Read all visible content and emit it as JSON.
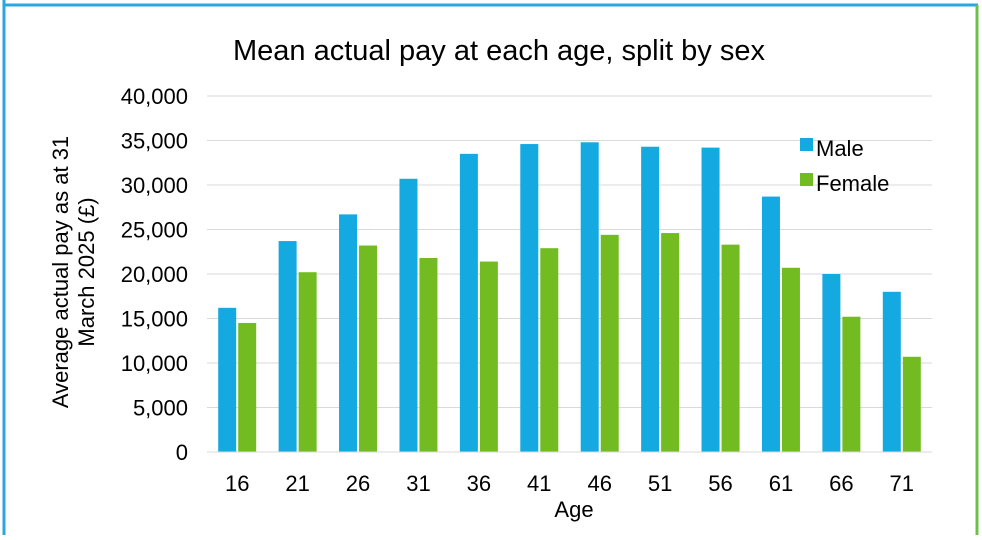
{
  "chart_data": {
    "type": "bar",
    "title": "Mean actual pay at each age, split by sex",
    "xlabel": "Age",
    "ylabel_line1": "Average actual pay as at 31",
    "ylabel_line2": "March 2025 (£)",
    "categories": [
      "16",
      "21",
      "26",
      "31",
      "36",
      "41",
      "46",
      "51",
      "56",
      "61",
      "66",
      "71"
    ],
    "series": [
      {
        "name": "Male",
        "color": "#14a9e1",
        "values": [
          16200,
          23700,
          26700,
          30700,
          33500,
          34600,
          34800,
          34300,
          34200,
          28700,
          20000,
          18000
        ]
      },
      {
        "name": "Female",
        "color": "#72bc22",
        "values": [
          14500,
          20200,
          23200,
          21800,
          21400,
          22900,
          24400,
          24600,
          23300,
          20700,
          15200,
          10700
        ]
      }
    ],
    "ylim": [
      0,
      40000
    ],
    "yticks": [
      "0",
      "5,000",
      "10,000",
      "15,000",
      "20,000",
      "25,000",
      "30,000",
      "35,000",
      "40,000"
    ],
    "grid": true,
    "legend_position": "top-right"
  },
  "frame": {
    "border_left_color": "#2aa7e0",
    "border_right_color": "#6cc04a"
  }
}
